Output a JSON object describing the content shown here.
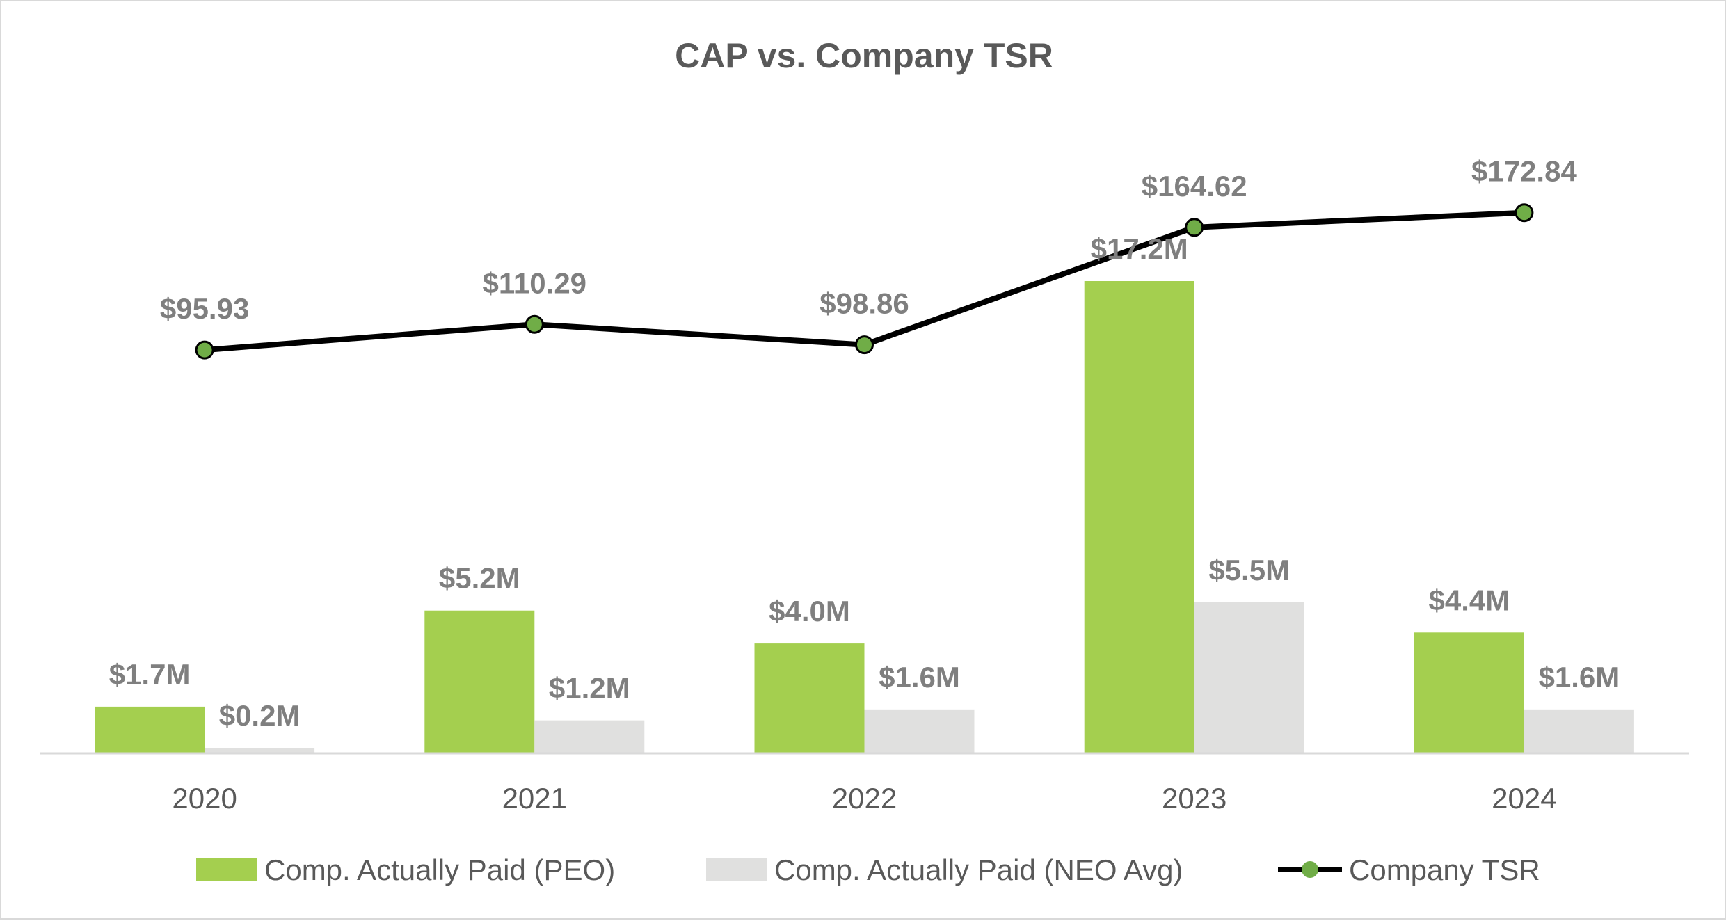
{
  "chart_data": {
    "type": "bar",
    "title": "CAP vs. Company TSR",
    "categories": [
      "2020",
      "2021",
      "2022",
      "2023",
      "2024"
    ],
    "series": [
      {
        "name": "Comp. Actually Paid (PEO)",
        "kind": "bar",
        "axis": "primary",
        "color": "#a4cf4f",
        "values": [
          1.7,
          5.2,
          4.0,
          17.2,
          4.4
        ],
        "labels": [
          "$1.7M",
          "$5.2M",
          "$4.0M",
          "$17.2M",
          "$4.4M"
        ]
      },
      {
        "name": "Comp. Actually Paid (NEO Avg)",
        "kind": "bar",
        "axis": "primary",
        "color": "#e0e0df",
        "values": [
          0.2,
          1.2,
          1.6,
          5.5,
          1.6
        ],
        "labels": [
          "$0.2M",
          "$1.2M",
          "$1.6M",
          "$5.5M",
          "$1.6M"
        ]
      },
      {
        "name": "Company TSR",
        "kind": "line",
        "axis": "secondary",
        "color": "#000000",
        "marker_color": "#70ad47",
        "values": [
          95.93,
          110.29,
          98.86,
          164.62,
          172.84
        ],
        "labels": [
          "$95.93",
          "$110.29",
          "$98.86",
          "$164.62",
          "$172.84"
        ]
      }
    ],
    "ylim_primary": [
      0,
      20
    ],
    "ylim_secondary": [
      -130,
      200
    ],
    "grid": false,
    "legend_position": "bottom",
    "xlabel": "",
    "ylabel": ""
  }
}
